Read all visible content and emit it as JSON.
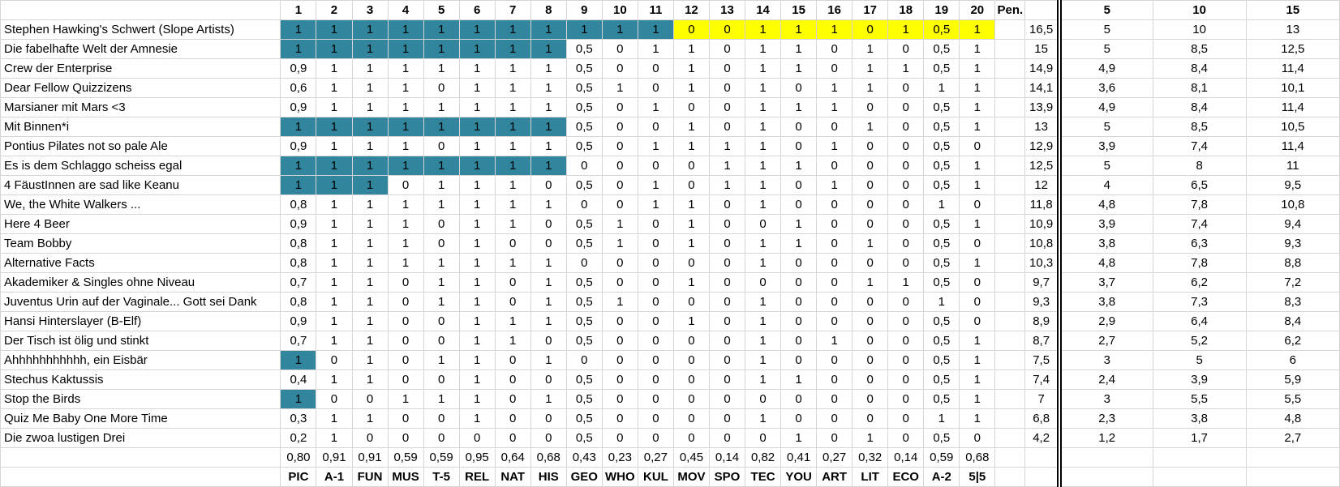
{
  "colors": {
    "teal_highlight": "#31859C",
    "yellow_highlight": "#FFFF00",
    "gridline": "#d5d5d5"
  },
  "header": {
    "corner_label": "",
    "question_numbers": [
      "1",
      "2",
      "3",
      "4",
      "5",
      "6",
      "7",
      "8",
      "9",
      "10",
      "11",
      "12",
      "13",
      "14",
      "15",
      "16",
      "17",
      "18",
      "19",
      "20"
    ],
    "penalty_label": "Pen.",
    "total_label": "",
    "checkpoint_labels": [
      "5",
      "10",
      "15"
    ]
  },
  "teams": [
    {
      "name": "Stephen Hawking's Schwert (Slope Artists)",
      "scores": [
        "1",
        "1",
        "1",
        "1",
        "1",
        "1",
        "1",
        "1",
        "1",
        "1",
        "1",
        "0",
        "0",
        "1",
        "1",
        "1",
        "0",
        "1",
        "0,5",
        "1"
      ],
      "teal_first_n": 11,
      "yellow_range": [
        12,
        20
      ],
      "pen": "",
      "total": "16,5",
      "checkpoints": [
        "5",
        "10",
        "13"
      ]
    },
    {
      "name": "Die fabelhafte Welt der Amnesie",
      "scores": [
        "1",
        "1",
        "1",
        "1",
        "1",
        "1",
        "1",
        "1",
        "0,5",
        "0",
        "1",
        "1",
        "0",
        "1",
        "1",
        "0",
        "1",
        "0",
        "0,5",
        "1"
      ],
      "teal_first_n": 8,
      "yellow_range": null,
      "pen": "",
      "total": "15",
      "checkpoints": [
        "5",
        "8,5",
        "12,5"
      ]
    },
    {
      "name": "Crew der Enterprise",
      "scores": [
        "0,9",
        "1",
        "1",
        "1",
        "1",
        "1",
        "1",
        "1",
        "0,5",
        "0",
        "0",
        "1",
        "0",
        "1",
        "1",
        "0",
        "1",
        "1",
        "0,5",
        "1"
      ],
      "teal_first_n": 0,
      "yellow_range": null,
      "pen": "",
      "total": "14,9",
      "checkpoints": [
        "4,9",
        "8,4",
        "11,4"
      ]
    },
    {
      "name": "Dear Fellow Quizzizens",
      "scores": [
        "0,6",
        "1",
        "1",
        "1",
        "0",
        "1",
        "1",
        "1",
        "0,5",
        "1",
        "0",
        "1",
        "0",
        "1",
        "0",
        "1",
        "1",
        "0",
        "1",
        "1"
      ],
      "teal_first_n": 0,
      "yellow_range": null,
      "pen": "",
      "total": "14,1",
      "checkpoints": [
        "3,6",
        "8,1",
        "10,1"
      ]
    },
    {
      "name": "Marsianer mit Mars <3",
      "scores": [
        "0,9",
        "1",
        "1",
        "1",
        "1",
        "1",
        "1",
        "1",
        "0,5",
        "0",
        "1",
        "0",
        "0",
        "1",
        "1",
        "1",
        "0",
        "0",
        "0,5",
        "1"
      ],
      "teal_first_n": 0,
      "yellow_range": null,
      "pen": "",
      "total": "13,9",
      "checkpoints": [
        "4,9",
        "8,4",
        "11,4"
      ]
    },
    {
      "name": "Mit Binnen*i",
      "scores": [
        "1",
        "1",
        "1",
        "1",
        "1",
        "1",
        "1",
        "1",
        "0,5",
        "0",
        "0",
        "1",
        "0",
        "1",
        "0",
        "0",
        "1",
        "0",
        "0,5",
        "1"
      ],
      "teal_first_n": 8,
      "yellow_range": null,
      "pen": "",
      "total": "13",
      "checkpoints": [
        "5",
        "8,5",
        "10,5"
      ]
    },
    {
      "name": "Pontius Pilates not so pale Ale",
      "scores": [
        "0,9",
        "1",
        "1",
        "1",
        "0",
        "1",
        "1",
        "1",
        "0,5",
        "0",
        "1",
        "1",
        "1",
        "1",
        "0",
        "1",
        "0",
        "0",
        "0,5",
        "0"
      ],
      "teal_first_n": 0,
      "yellow_range": null,
      "pen": "",
      "total": "12,9",
      "checkpoints": [
        "3,9",
        "7,4",
        "11,4"
      ]
    },
    {
      "name": "Es is dem Schlaggo scheiss egal",
      "scores": [
        "1",
        "1",
        "1",
        "1",
        "1",
        "1",
        "1",
        "1",
        "0",
        "0",
        "0",
        "0",
        "1",
        "1",
        "1",
        "0",
        "0",
        "0",
        "0,5",
        "1"
      ],
      "teal_first_n": 8,
      "yellow_range": null,
      "pen": "",
      "total": "12,5",
      "checkpoints": [
        "5",
        "8",
        "11"
      ]
    },
    {
      "name": "4 FäustInnen are sad like Keanu",
      "scores": [
        "1",
        "1",
        "1",
        "0",
        "1",
        "1",
        "1",
        "0",
        "0,5",
        "0",
        "1",
        "0",
        "1",
        "1",
        "0",
        "1",
        "0",
        "0",
        "0,5",
        "1"
      ],
      "teal_first_n": 3,
      "yellow_range": null,
      "pen": "",
      "total": "12",
      "checkpoints": [
        "4",
        "6,5",
        "9,5"
      ]
    },
    {
      "name": "We, the White Walkers ...",
      "scores": [
        "0,8",
        "1",
        "1",
        "1",
        "1",
        "1",
        "1",
        "1",
        "0",
        "0",
        "1",
        "1",
        "0",
        "1",
        "0",
        "0",
        "0",
        "0",
        "1",
        "0"
      ],
      "teal_first_n": 0,
      "yellow_range": null,
      "pen": "",
      "total": "11,8",
      "checkpoints": [
        "4,8",
        "7,8",
        "10,8"
      ]
    },
    {
      "name": "Here 4 Beer",
      "scores": [
        "0,9",
        "1",
        "1",
        "1",
        "0",
        "1",
        "1",
        "0",
        "0,5",
        "1",
        "0",
        "1",
        "0",
        "0",
        "1",
        "0",
        "0",
        "0",
        "0,5",
        "1"
      ],
      "teal_first_n": 0,
      "yellow_range": null,
      "pen": "",
      "total": "10,9",
      "checkpoints": [
        "3,9",
        "7,4",
        "9,4"
      ]
    },
    {
      "name": "Team Bobby",
      "scores": [
        "0,8",
        "1",
        "1",
        "1",
        "0",
        "1",
        "0",
        "0",
        "0,5",
        "1",
        "0",
        "1",
        "0",
        "1",
        "1",
        "0",
        "1",
        "0",
        "0,5",
        "0"
      ],
      "teal_first_n": 0,
      "yellow_range": null,
      "pen": "",
      "total": "10,8",
      "checkpoints": [
        "3,8",
        "6,3",
        "9,3"
      ]
    },
    {
      "name": "Alternative Facts",
      "scores": [
        "0,8",
        "1",
        "1",
        "1",
        "1",
        "1",
        "1",
        "1",
        "0",
        "0",
        "0",
        "0",
        "0",
        "1",
        "0",
        "0",
        "0",
        "0",
        "0,5",
        "1"
      ],
      "teal_first_n": 0,
      "yellow_range": null,
      "pen": "",
      "total": "10,3",
      "checkpoints": [
        "4,8",
        "7,8",
        "8,8"
      ]
    },
    {
      "name": "Akademiker & Singles ohne Niveau",
      "scores": [
        "0,7",
        "1",
        "1",
        "0",
        "1",
        "1",
        "0",
        "1",
        "0,5",
        "0",
        "0",
        "1",
        "0",
        "0",
        "0",
        "0",
        "1",
        "1",
        "0,5",
        "0"
      ],
      "teal_first_n": 0,
      "yellow_range": null,
      "pen": "",
      "total": "9,7",
      "checkpoints": [
        "3,7",
        "6,2",
        "7,2"
      ]
    },
    {
      "name": "Juventus Urin auf der Vaginale... Gott sei Dank",
      "scores": [
        "0,8",
        "1",
        "1",
        "0",
        "1",
        "1",
        "0",
        "1",
        "0,5",
        "1",
        "0",
        "0",
        "0",
        "1",
        "0",
        "0",
        "0",
        "0",
        "1",
        "0"
      ],
      "teal_first_n": 0,
      "yellow_range": null,
      "pen": "",
      "total": "9,3",
      "checkpoints": [
        "3,8",
        "7,3",
        "8,3"
      ]
    },
    {
      "name": "Hansi Hinterslayer (B-Elf)",
      "scores": [
        "0,9",
        "1",
        "1",
        "0",
        "0",
        "1",
        "1",
        "1",
        "0,5",
        "0",
        "0",
        "1",
        "0",
        "1",
        "0",
        "0",
        "0",
        "0",
        "0,5",
        "0"
      ],
      "teal_first_n": 0,
      "yellow_range": null,
      "pen": "",
      "total": "8,9",
      "checkpoints": [
        "2,9",
        "6,4",
        "8,4"
      ]
    },
    {
      "name": "Der Tisch ist ölig und stinkt",
      "scores": [
        "0,7",
        "1",
        "1",
        "0",
        "0",
        "1",
        "1",
        "0",
        "0,5",
        "0",
        "0",
        "0",
        "0",
        "1",
        "0",
        "1",
        "0",
        "0",
        "0,5",
        "1"
      ],
      "teal_first_n": 0,
      "yellow_range": null,
      "pen": "",
      "total": "8,7",
      "checkpoints": [
        "2,7",
        "5,2",
        "6,2"
      ]
    },
    {
      "name": "Ahhhhhhhhhhh, ein Eisbär",
      "scores": [
        "1",
        "0",
        "1",
        "0",
        "1",
        "1",
        "0",
        "1",
        "0",
        "0",
        "0",
        "0",
        "0",
        "1",
        "0",
        "0",
        "0",
        "0",
        "0,5",
        "1"
      ],
      "teal_first_n": 1,
      "yellow_range": null,
      "pen": "",
      "total": "7,5",
      "checkpoints": [
        "3",
        "5",
        "6"
      ]
    },
    {
      "name": "Stechus Kaktussis",
      "scores": [
        "0,4",
        "1",
        "1",
        "0",
        "0",
        "1",
        "0",
        "0",
        "0,5",
        "0",
        "0",
        "0",
        "0",
        "1",
        "1",
        "0",
        "0",
        "0",
        "0,5",
        "1"
      ],
      "teal_first_n": 0,
      "yellow_range": null,
      "pen": "",
      "total": "7,4",
      "checkpoints": [
        "2,4",
        "3,9",
        "5,9"
      ]
    },
    {
      "name": "Stop the Birds",
      "scores": [
        "1",
        "0",
        "0",
        "1",
        "1",
        "1",
        "0",
        "1",
        "0,5",
        "0",
        "0",
        "0",
        "0",
        "0",
        "0",
        "0",
        "0",
        "0",
        "0,5",
        "1"
      ],
      "teal_first_n": 1,
      "yellow_range": null,
      "pen": "",
      "total": "7",
      "checkpoints": [
        "3",
        "5,5",
        "5,5"
      ]
    },
    {
      "name": "Quiz Me Baby One More Time",
      "scores": [
        "0,3",
        "1",
        "1",
        "0",
        "0",
        "1",
        "0",
        "0",
        "0,5",
        "0",
        "0",
        "0",
        "0",
        "1",
        "0",
        "0",
        "0",
        "0",
        "1",
        "1"
      ],
      "teal_first_n": 0,
      "yellow_range": null,
      "pen": "",
      "total": "6,8",
      "checkpoints": [
        "2,3",
        "3,8",
        "4,8"
      ]
    },
    {
      "name": "Die zwoa lustigen Drei",
      "scores": [
        "0,2",
        "1",
        "0",
        "0",
        "0",
        "0",
        "0",
        "0",
        "0,5",
        "0",
        "0",
        "0",
        "0",
        "0",
        "1",
        "0",
        "1",
        "0",
        "0,5",
        "0"
      ],
      "teal_first_n": 0,
      "yellow_range": null,
      "pen": "",
      "total": "4,2",
      "checkpoints": [
        "1,2",
        "1,7",
        "2,7"
      ]
    }
  ],
  "footer": {
    "averages": [
      "0,80",
      "0,91",
      "0,91",
      "0,59",
      "0,59",
      "0,95",
      "0,64",
      "0,68",
      "0,43",
      "0,23",
      "0,27",
      "0,45",
      "0,14",
      "0,82",
      "0,41",
      "0,27",
      "0,32",
      "0,14",
      "0,59",
      "0,68"
    ],
    "categories": [
      "PIC",
      "A-1",
      "FUN",
      "MUS",
      "T-5",
      "REL",
      "NAT",
      "HIS",
      "GEO",
      "WHO",
      "KUL",
      "MOV",
      "SPO",
      "TEC",
      "YOU",
      "ART",
      "LIT",
      "ECO",
      "A-2",
      "5|5"
    ]
  }
}
